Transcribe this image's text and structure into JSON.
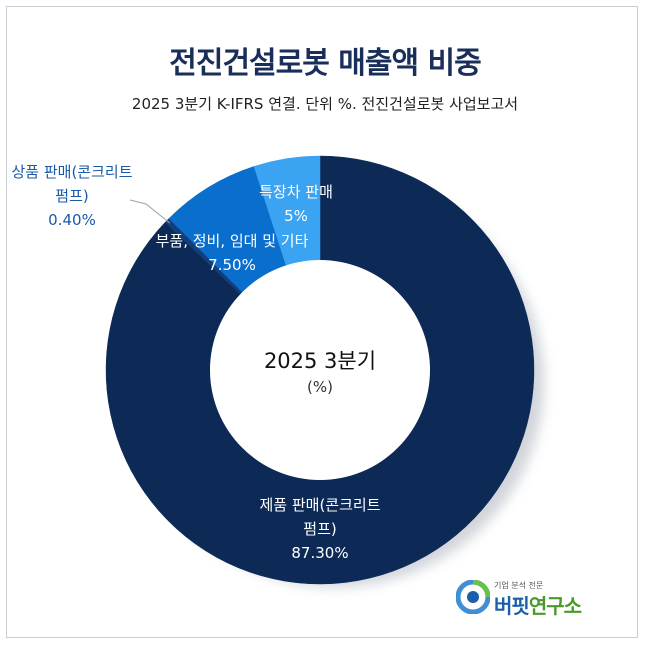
{
  "header": {
    "title": "전진건설로봇 매출액 비중",
    "subtitle": "2025 3분기 K-IFRS 연결. 단위 %. 전진건설로봇 사업보고서"
  },
  "center": {
    "line1": "2025 3분기",
    "line2": "(%)"
  },
  "chart_data": {
    "type": "pie",
    "hole": "donut",
    "start": "12 o'clock, clockwise",
    "slices": [
      {
        "label": "제품 판매(콘크리트 펌프)",
        "label_lines": [
          "제품 판매(콘크리트",
          "펌프)"
        ],
        "value": 87.3,
        "value_label": "87.30%",
        "color": "#0d2a57"
      },
      {
        "label": "상품 판매(콘크리트 펌프)",
        "label_lines": [
          "상품 판매(콘크리트",
          "펌프)"
        ],
        "value": 0.4,
        "value_label": "0.40%",
        "color": "#123f7c"
      },
      {
        "label": "부품, 정비, 임대 및 기타",
        "label_lines": [
          "부품, 정비, 임대 및 기타"
        ],
        "value": 7.5,
        "value_label": "7.50%",
        "color": "#0a6fcc"
      },
      {
        "label": "특장차 판매",
        "label_lines": [
          "특장차 판매"
        ],
        "value": 5,
        "value_label": "5%",
        "color": "#3aa3f2"
      }
    ]
  },
  "logo": {
    "small": "기업 분석 전문",
    "main_blue": "버핏",
    "main_green": "연구소"
  }
}
